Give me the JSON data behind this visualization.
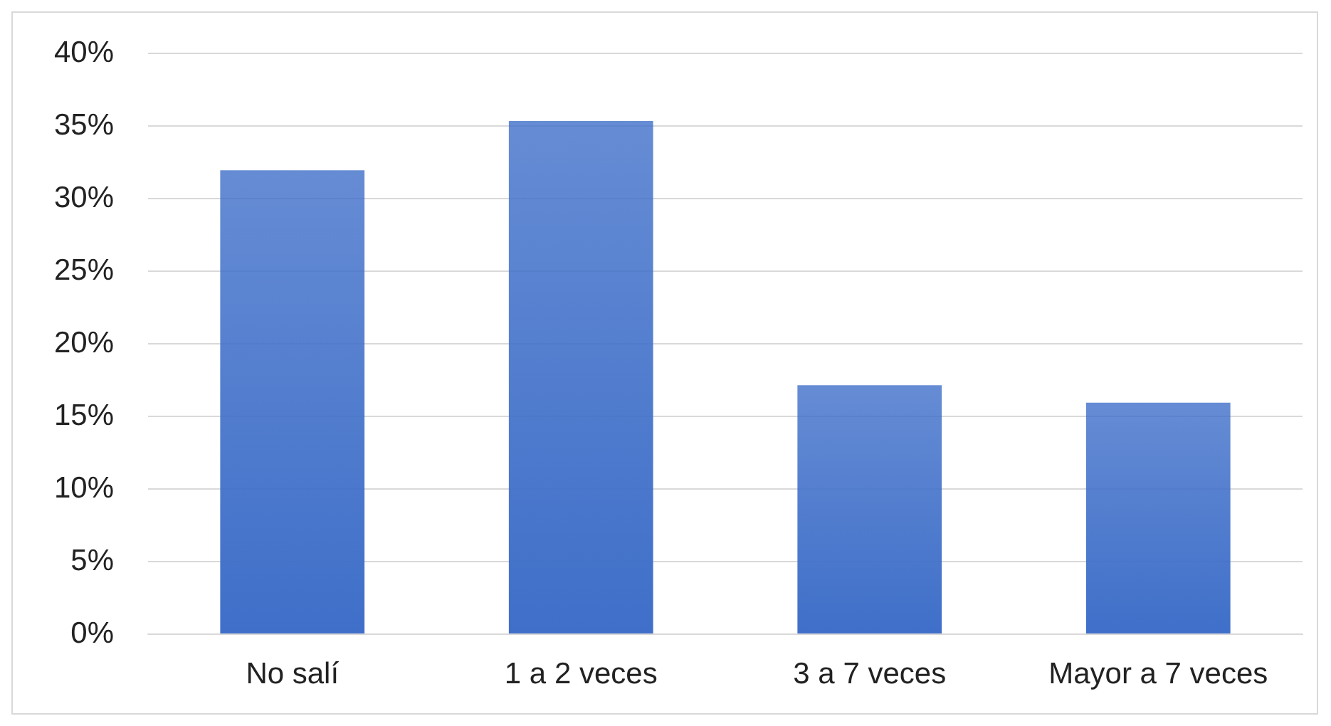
{
  "chart_data": {
    "type": "bar",
    "categories": [
      "No salí",
      "1 a 2 veces",
      "3 a 7 veces",
      "Mayor a 7 veces"
    ],
    "values": [
      31.9,
      35.3,
      17.1,
      15.9
    ],
    "color": "#3f6fc9",
    "ylim": [
      0,
      40
    ],
    "yticks": [
      {
        "value": 0,
        "label": "0%"
      },
      {
        "value": 5,
        "label": "5%"
      },
      {
        "value": 10,
        "label": "10%"
      },
      {
        "value": 15,
        "label": "15%"
      },
      {
        "value": 20,
        "label": "20%"
      },
      {
        "value": 25,
        "label": "25%"
      },
      {
        "value": 30,
        "label": "30%"
      },
      {
        "value": 35,
        "label": "35%"
      },
      {
        "value": 40,
        "label": "40%"
      }
    ],
    "grid": "y"
  }
}
